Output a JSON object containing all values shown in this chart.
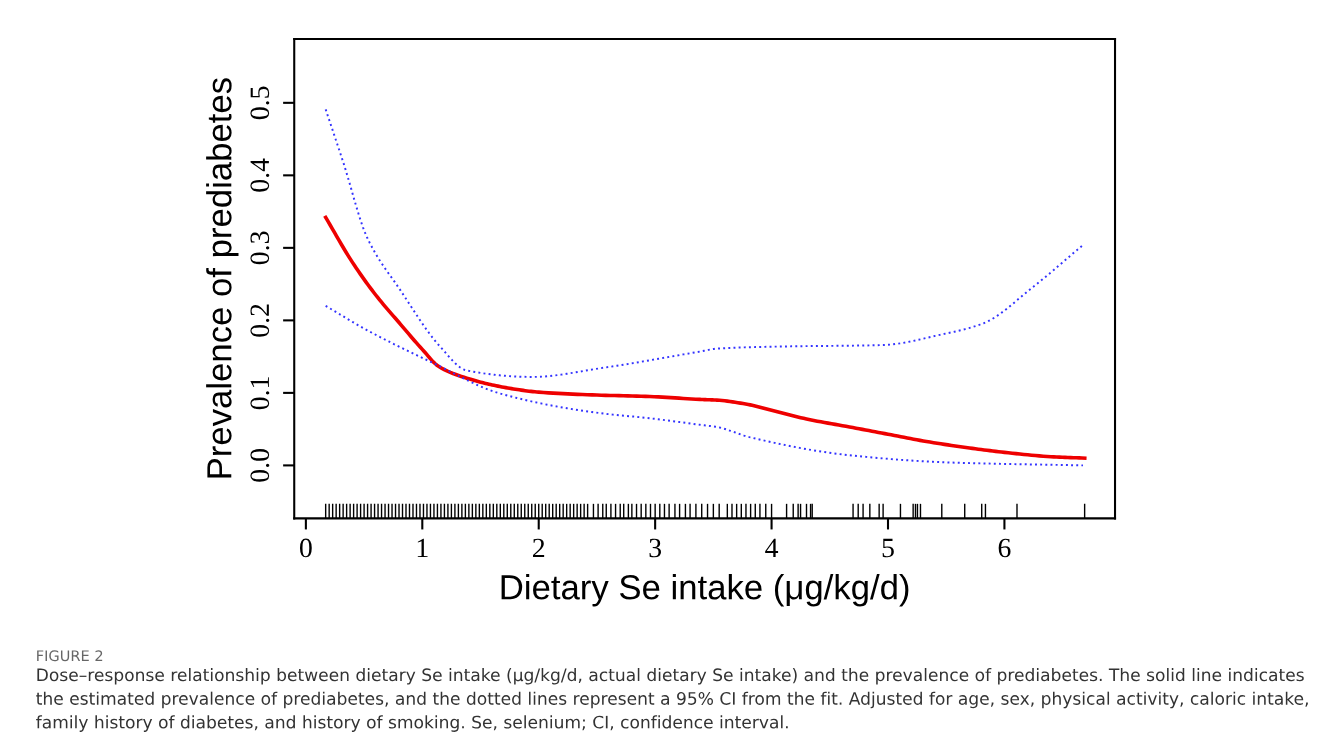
{
  "chart_data": {
    "type": "line",
    "xlabel": "Dietary Se intake (μg/kg/d)",
    "ylabel": "Prevalence of prediabetes",
    "xlim": [
      -0.1,
      6.95
    ],
    "ylim": [
      -0.073,
      0.588
    ],
    "xticks": [
      0,
      1,
      2,
      3,
      4,
      5,
      6
    ],
    "yticks": [
      {
        "value": 0,
        "label": "0.0"
      },
      0.1,
      0.2,
      0.3,
      0.4,
      0.5
    ],
    "grid": false,
    "legend": false,
    "series": [
      {
        "color": "#ee0000",
        "line_style": "solid",
        "x": [
          0.17,
          0.4,
          0.6,
          0.8,
          1.0,
          1.145,
          1.43,
          1.6,
          1.8,
          2.0,
          2.5,
          2.955,
          3.385,
          3.53,
          3.8,
          4.0,
          4.3,
          4.67,
          5.0,
          5.33,
          5.7,
          6.0,
          6.4,
          6.69
        ],
        "values": [
          0.342,
          0.28,
          0.235,
          0.197,
          0.16,
          0.136,
          0.118,
          0.111,
          0.105,
          0.101,
          0.097,
          0.095,
          0.091,
          0.09,
          0.084,
          0.076,
          0.064,
          0.053,
          0.043,
          0.033,
          0.024,
          0.018,
          0.012,
          0.01
        ]
      },
      {
        "color": "#3333ff",
        "line_style": "dotted",
        "x": [
          0.17,
          0.323,
          0.524,
          0.81,
          1.152,
          1.38,
          1.95,
          2.53,
          3.385,
          3.53,
          4.1,
          4.96,
          5.445,
          5.82,
          6.245,
          6.675
        ],
        "values": [
          0.491,
          0.417,
          0.315,
          0.242,
          0.164,
          0.131,
          0.122,
          0.134,
          0.157,
          0.161,
          0.164,
          0.166,
          0.18,
          0.196,
          0.246,
          0.304
        ]
      },
      {
        "color": "#3333ff",
        "line_style": "dotted",
        "x": [
          0.17,
          0.52,
          1.095,
          1.67,
          2.53,
          2.955,
          3.385,
          3.53,
          3.81,
          4.67,
          5.53,
          6.675
        ],
        "values": [
          0.22,
          0.187,
          0.141,
          0.099,
          0.072,
          0.065,
          0.056,
          0.053,
          0.039,
          0.014,
          0.004,
          0.0
        ]
      },
      {
        "type": "bar",
        "color": "#000000",
        "base": [
          -0.073,
          -0.073,
          -0.073,
          -0.073,
          -0.073,
          -0.073,
          -0.073,
          -0.073,
          -0.073,
          -0.073,
          -0.073,
          -0.073,
          -0.073,
          -0.073,
          -0.073,
          -0.073,
          -0.073,
          -0.073,
          -0.073,
          -0.073,
          -0.073,
          -0.073,
          -0.073,
          -0.073,
          -0.073,
          -0.073,
          -0.073,
          -0.073,
          -0.073,
          -0.073,
          -0.073,
          -0.073,
          -0.073,
          -0.073,
          -0.073,
          -0.073,
          -0.073,
          -0.073,
          -0.073,
          -0.073,
          -0.073,
          -0.073,
          -0.073,
          -0.073,
          -0.073,
          -0.073,
          -0.073,
          -0.073,
          -0.073,
          -0.073,
          -0.073,
          -0.073,
          -0.073,
          -0.073,
          -0.073,
          -0.073,
          -0.073,
          -0.073,
          -0.073,
          -0.073,
          -0.073,
          -0.073,
          -0.073,
          -0.073,
          -0.073,
          -0.073,
          -0.073,
          -0.073,
          -0.073,
          -0.073,
          -0.073,
          -0.073,
          -0.073,
          -0.073,
          -0.073,
          -0.073,
          -0.073,
          -0.073,
          -0.073,
          -0.073,
          -0.073,
          -0.073,
          -0.073,
          -0.073,
          -0.073,
          -0.073,
          -0.073,
          -0.073,
          -0.073,
          -0.073,
          -0.073,
          -0.073,
          -0.073,
          -0.073,
          -0.073,
          -0.073,
          -0.073,
          -0.073,
          -0.073,
          -0.073,
          -0.073,
          -0.073,
          -0.073,
          -0.073,
          -0.073,
          -0.073,
          -0.073,
          -0.073,
          -0.073,
          -0.073,
          -0.073,
          -0.073,
          -0.073,
          -0.073,
          -0.073,
          -0.073,
          -0.073,
          -0.073,
          -0.073,
          -0.073,
          -0.073,
          -0.073,
          -0.073,
          -0.073,
          -0.073,
          -0.073,
          -0.073,
          -0.073,
          -0.073,
          -0.073,
          -0.073,
          -0.073,
          -0.073,
          -0.073,
          -0.073,
          -0.073,
          -0.073
        ],
        "values": [
          0.02,
          0.02,
          0.02,
          0.02,
          0.02,
          0.02,
          0.02,
          0.02,
          0.02,
          0.02,
          0.02,
          0.02,
          0.02,
          0.02,
          0.02,
          0.02,
          0.02,
          0.02,
          0.02,
          0.02,
          0.02,
          0.02,
          0.02,
          0.02,
          0.02,
          0.02,
          0.02,
          0.02,
          0.02,
          0.02,
          0.02,
          0.02,
          0.02,
          0.02,
          0.02,
          0.02,
          0.02,
          0.02,
          0.02,
          0.02,
          0.02,
          0.02,
          0.02,
          0.02,
          0.02,
          0.02,
          0.02,
          0.02,
          0.02,
          0.02,
          0.02,
          0.02,
          0.02,
          0.02,
          0.02,
          0.02,
          0.02,
          0.02,
          0.02,
          0.02,
          0.02,
          0.02,
          0.02,
          0.02,
          0.02,
          0.02,
          0.02,
          0.02,
          0.02,
          0.02,
          0.02,
          0.02,
          0.02,
          0.02,
          0.02,
          0.02,
          0.02,
          0.02,
          0.02,
          0.02,
          0.02,
          0.02,
          0.02,
          0.02,
          0.02,
          0.02,
          0.02,
          0.02,
          0.02,
          0.02,
          0.02,
          0.02,
          0.02,
          0.02,
          0.02,
          0.02,
          0.02,
          0.02,
          0.02,
          0.02,
          0.02,
          0.02,
          0.02,
          0.02,
          0.02,
          0.02,
          0.02,
          0.02,
          0.02,
          0.02,
          0.02,
          0.02,
          0.02,
          0.02,
          0.02,
          0.02,
          0.02,
          0.02,
          0.02,
          0.02,
          0.02,
          0.02,
          0.02,
          0.02,
          0.02,
          0.02,
          0.02,
          0.02,
          0.02,
          0.02,
          0.02,
          0.02,
          0.02,
          0.02,
          0.02,
          0.02,
          0.02
        ],
        "x": [
          0.17,
          0.2,
          0.23,
          0.26,
          0.29,
          0.32,
          0.35,
          0.38,
          0.41,
          0.44,
          0.47,
          0.5,
          0.53,
          0.56,
          0.59,
          0.62,
          0.65,
          0.68,
          0.71,
          0.74,
          0.77,
          0.8,
          0.83,
          0.86,
          0.89,
          0.92,
          0.95,
          0.98,
          1.01,
          1.04,
          1.07,
          1.1,
          1.13,
          1.16,
          1.19,
          1.22,
          1.25,
          1.28,
          1.31,
          1.34,
          1.37,
          1.4,
          1.43,
          1.46,
          1.49,
          1.52,
          1.55,
          1.58,
          1.61,
          1.64,
          1.67,
          1.7,
          1.73,
          1.76,
          1.79,
          1.82,
          1.85,
          1.88,
          1.91,
          1.94,
          1.97,
          2.0,
          2.03,
          2.06,
          2.09,
          2.12,
          2.15,
          2.18,
          2.21,
          2.24,
          2.27,
          2.3,
          2.33,
          2.36,
          2.39,
          2.42,
          2.47,
          2.51,
          2.55,
          2.58,
          2.62,
          2.66,
          2.7,
          2.73,
          2.77,
          2.8,
          2.84,
          2.88,
          2.92,
          2.96,
          3.0,
          3.04,
          3.08,
          3.12,
          3.17,
          3.21,
          3.26,
          3.3,
          3.35,
          3.4,
          3.45,
          3.5,
          3.55,
          3.62,
          3.66,
          3.7,
          3.74,
          3.78,
          3.82,
          3.86,
          3.9,
          3.95,
          4.0,
          4.129,
          4.186,
          4.228,
          4.249,
          4.3,
          4.335,
          4.349,
          4.7,
          4.744,
          4.786,
          4.844,
          4.924,
          4.958,
          5.107,
          5.216,
          5.236,
          5.253,
          5.279,
          5.462,
          5.659,
          5.805,
          5.837,
          6.108,
          6.689
        ]
      }
    ],
    "annotations": [
      "FIGURE 2",
      "Dose–response relationship between dietary Se intake (μg/kg/d, actual dietary Se intake) and the prevalence of prediabetes. The solid line indicates the estimated prevalence of prediabetes, and the dotted lines represent a 95% CI from the fit. Adjusted for age, sex, physical activity, caloric intake, family history of diabetes, and history of smoking. Se, selenium; CI, confidence interval."
    ]
  }
}
